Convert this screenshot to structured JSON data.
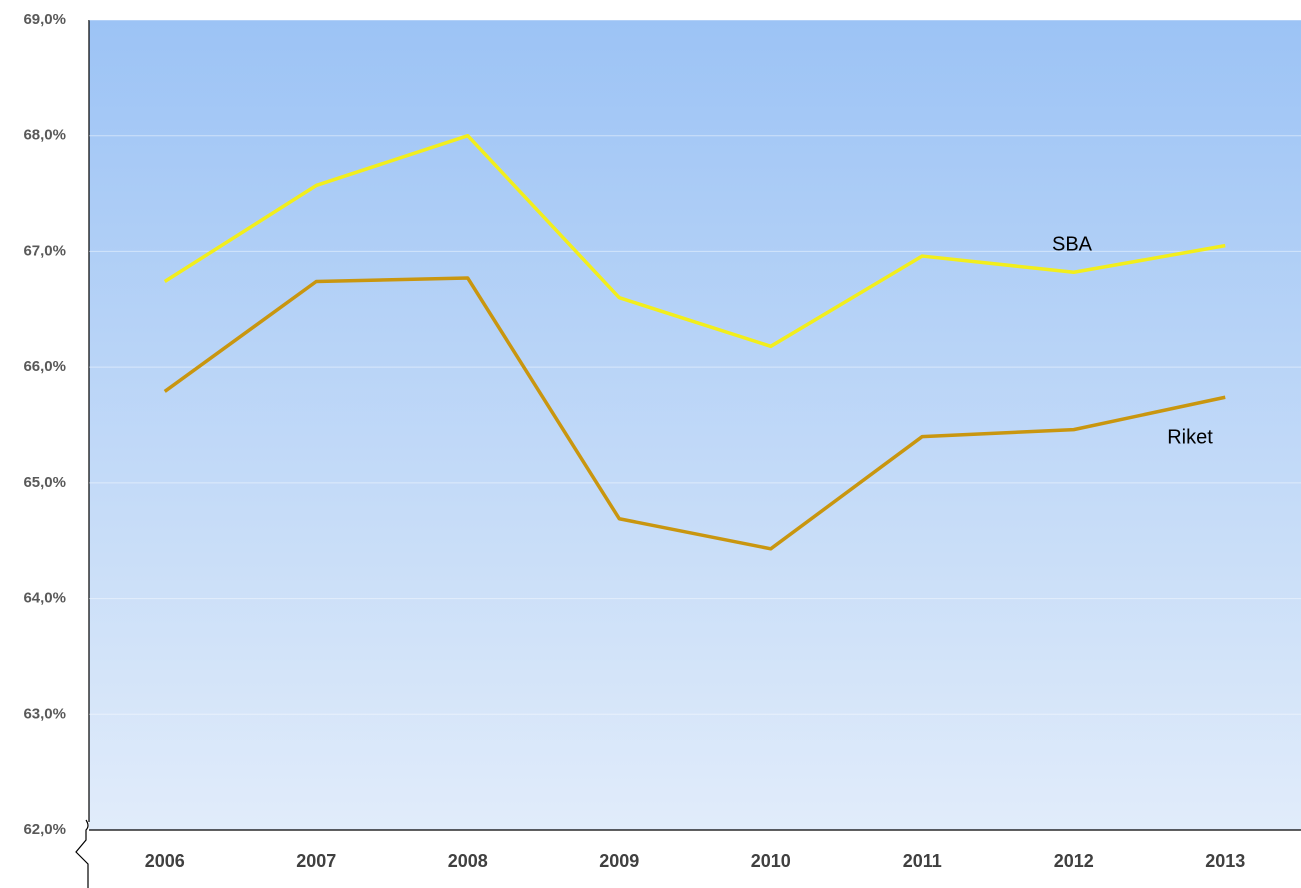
{
  "chart_data": {
    "type": "line",
    "categories": [
      "2006",
      "2007",
      "2008",
      "2009",
      "2010",
      "2011",
      "2012",
      "2013"
    ],
    "series": [
      {
        "name": "SBA",
        "color": "#f2ee1c",
        "values": [
          66.74,
          67.57,
          68.0,
          66.6,
          66.18,
          66.96,
          66.82,
          67.05
        ]
      },
      {
        "name": "Riket",
        "color": "#c9960f",
        "values": [
          65.79,
          66.74,
          66.77,
          64.69,
          64.43,
          65.4,
          65.46,
          65.74
        ]
      }
    ],
    "ylim": [
      62,
      69
    ],
    "yticks": [
      {
        "value": 62,
        "label": "62,0%"
      },
      {
        "value": 63,
        "label": "63,0%"
      },
      {
        "value": 64,
        "label": "64,0%"
      },
      {
        "value": 65,
        "label": "65,0%"
      },
      {
        "value": 66,
        "label": "66,0%"
      },
      {
        "value": 67,
        "label": "67,0%"
      },
      {
        "value": 68,
        "label": "68,0%"
      },
      {
        "value": 69,
        "label": "69,0%"
      }
    ],
    "grid": true
  }
}
